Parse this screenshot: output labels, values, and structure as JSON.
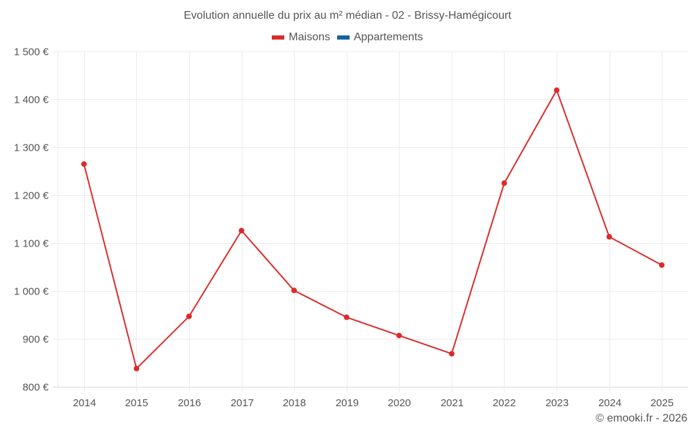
{
  "chart": {
    "title": "Evolution annuelle du prix au m² médian - 02 - Brissy-Hamégicourt",
    "legend": [
      {
        "label": "Maisons",
        "color": "#dd2a2a"
      },
      {
        "label": "Appartements",
        "color": "#16639c"
      }
    ],
    "credits": "© emooki.fr - 2026"
  },
  "chart_data": {
    "type": "line",
    "title": "Evolution annuelle du prix au m² médian - 02 - Brissy-Hamégicourt",
    "xlabel": "",
    "ylabel": "",
    "categories": [
      "2014",
      "2015",
      "2016",
      "2017",
      "2018",
      "2019",
      "2020",
      "2021",
      "2022",
      "2023",
      "2024",
      "2025"
    ],
    "series": [
      {
        "name": "Maisons",
        "color": "#dd2a2a",
        "values": [
          1265,
          838,
          947,
          1126,
          1001,
          945,
          907,
          869,
          1225,
          1419,
          1113,
          1054
        ]
      },
      {
        "name": "Appartements",
        "color": "#16639c",
        "values": []
      }
    ],
    "y_ticks": [
      "800 €",
      "900 €",
      "1 000 €",
      "1 100 €",
      "1 200 €",
      "1 300 €",
      "1 400 €",
      "1 500 €"
    ],
    "ylim": [
      800,
      1500
    ],
    "grid": true,
    "legend_position": "top"
  }
}
